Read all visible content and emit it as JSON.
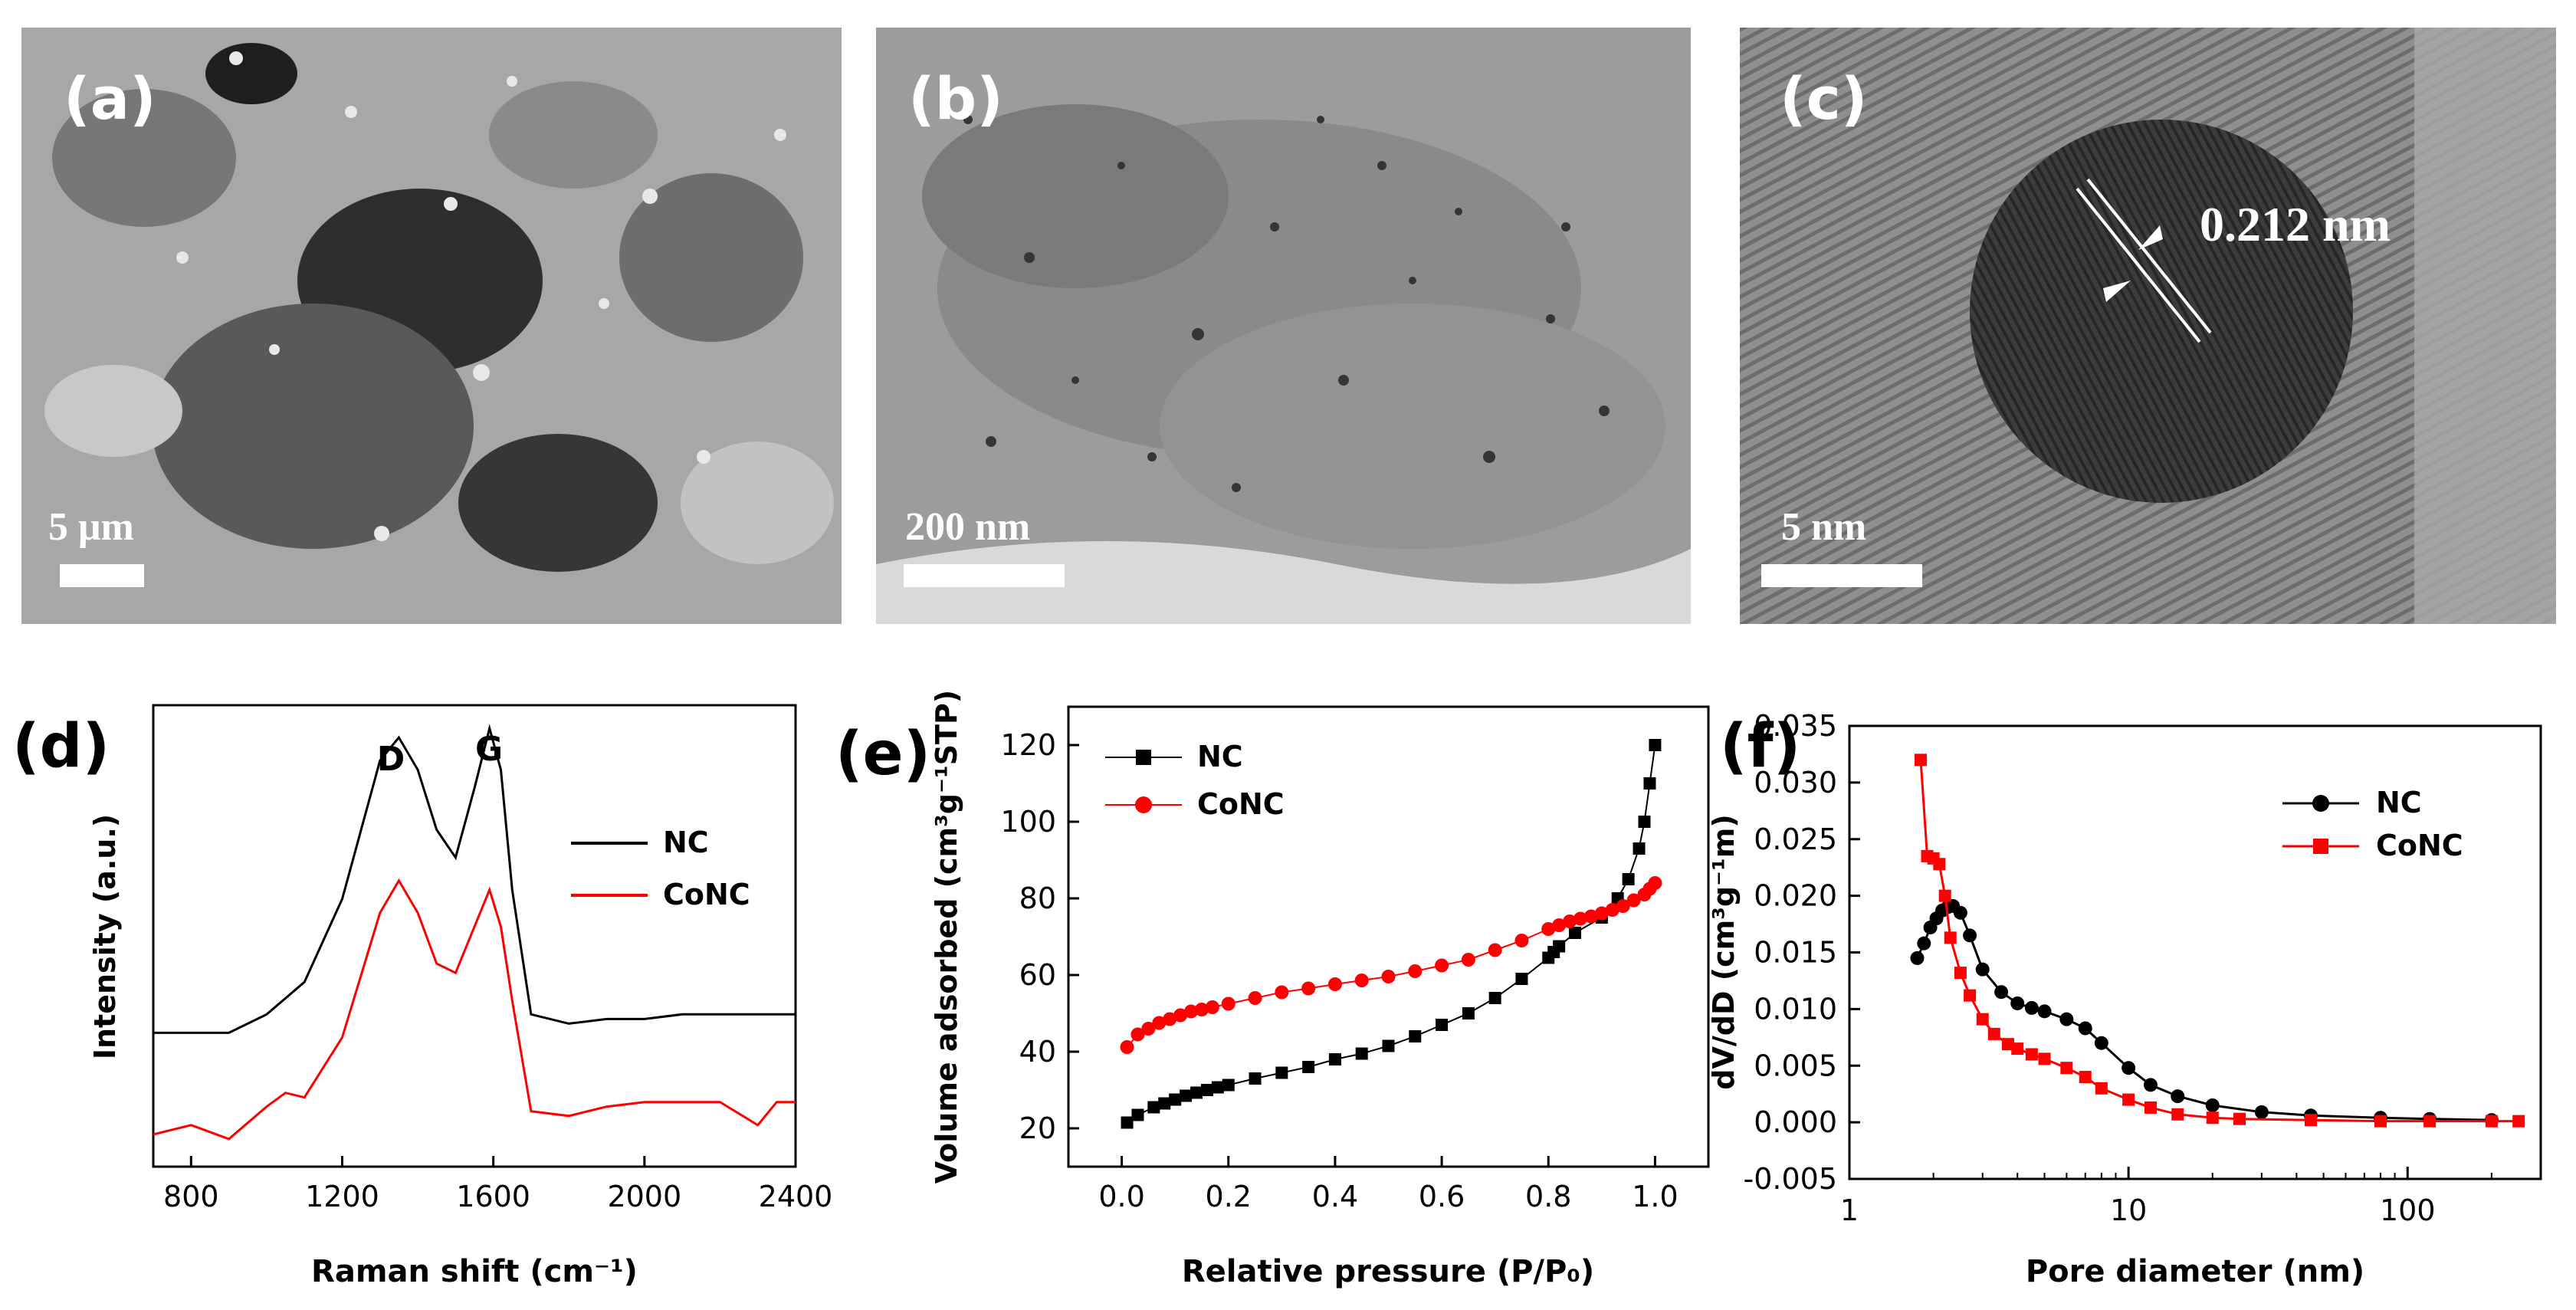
{
  "panels": {
    "a": {
      "label": "(a)",
      "scale": "5 μm"
    },
    "b": {
      "label": "(b)",
      "scale": "200 nm"
    },
    "c": {
      "label": "(c)",
      "scale": "5 nm",
      "lattice": "0.212 nm"
    }
  },
  "colors": {
    "nc": "#000000",
    "conc": "#ff0000"
  },
  "chart_data": [
    {
      "panel": "(d)",
      "type": "line",
      "xlabel": "Raman shift (cm⁻¹)",
      "ylabel": "Intensity (a.u.)",
      "xlim": [
        700,
        2400
      ],
      "xticks": [
        800,
        1200,
        1600,
        2000,
        2400
      ],
      "annotations": [
        "D",
        "G"
      ],
      "legend": "right",
      "series": [
        {
          "name": "NC",
          "x": [
            700,
            800,
            900,
            1000,
            1100,
            1200,
            1300,
            1350,
            1400,
            1450,
            1500,
            1550,
            1590,
            1620,
            1650,
            1700,
            1800,
            1900,
            2000,
            2100,
            2200,
            2300,
            2400
          ],
          "y": [
            0.29,
            0.29,
            0.29,
            0.33,
            0.4,
            0.58,
            0.88,
            0.93,
            0.86,
            0.73,
            0.67,
            0.82,
            0.95,
            0.86,
            0.6,
            0.33,
            0.31,
            0.32,
            0.32,
            0.33,
            0.33,
            0.33,
            0.33
          ]
        },
        {
          "name": "CoNC",
          "x": [
            700,
            800,
            900,
            1000,
            1050,
            1100,
            1200,
            1300,
            1350,
            1400,
            1450,
            1500,
            1550,
            1590,
            1620,
            1650,
            1700,
            1800,
            1900,
            2000,
            2100,
            2200,
            2300,
            2350,
            2400
          ],
          "y": [
            0.07,
            0.09,
            0.06,
            0.13,
            0.16,
            0.15,
            0.28,
            0.55,
            0.62,
            0.55,
            0.44,
            0.42,
            0.52,
            0.6,
            0.52,
            0.36,
            0.12,
            0.11,
            0.13,
            0.14,
            0.14,
            0.14,
            0.09,
            0.14,
            0.14
          ]
        }
      ]
    },
    {
      "panel": "(e)",
      "type": "scatter",
      "xlabel": "Relative pressure (P/P₀)",
      "ylabel": "Volume adsorbed (cm³g⁻¹STP)",
      "xlim": [
        -0.1,
        1.1
      ],
      "ylim": [
        10,
        130
      ],
      "xticks": [
        0.0,
        0.2,
        0.4,
        0.6,
        0.8,
        1.0
      ],
      "yticks": [
        20,
        40,
        60,
        80,
        100,
        120
      ],
      "legend": "top-left",
      "series": [
        {
          "name": "NC",
          "marker": "square",
          "x": [
            0.01,
            0.03,
            0.06,
            0.08,
            0.1,
            0.12,
            0.14,
            0.16,
            0.18,
            0.2,
            0.25,
            0.3,
            0.35,
            0.4,
            0.45,
            0.5,
            0.55,
            0.6,
            0.65,
            0.7,
            0.75,
            0.8,
            0.81,
            0.82,
            0.85,
            0.9,
            0.93,
            0.95,
            0.97,
            0.98,
            0.99,
            1.0
          ],
          "y": [
            21.5,
            23.5,
            25.5,
            26.5,
            27.5,
            28.5,
            29.3,
            30,
            30.7,
            31.3,
            33,
            34.5,
            36,
            38,
            39.5,
            41.5,
            44,
            47,
            50,
            54,
            59,
            64.5,
            66,
            67.5,
            71,
            75,
            80,
            85,
            93,
            100,
            110,
            120
          ]
        },
        {
          "name": "CoNC",
          "marker": "circle",
          "x": [
            0.01,
            0.03,
            0.05,
            0.07,
            0.09,
            0.11,
            0.13,
            0.15,
            0.17,
            0.2,
            0.25,
            0.3,
            0.35,
            0.4,
            0.45,
            0.5,
            0.55,
            0.6,
            0.65,
            0.7,
            0.75,
            0.8,
            0.82,
            0.84,
            0.86,
            0.88,
            0.9,
            0.92,
            0.94,
            0.96,
            0.98,
            0.99,
            1.0
          ],
          "y": [
            41.2,
            44.5,
            46,
            47.5,
            48.5,
            49.5,
            50.5,
            51,
            51.6,
            52.5,
            54,
            55.5,
            56.5,
            57.6,
            58.6,
            59.6,
            61,
            62.5,
            64,
            66.5,
            69,
            72,
            73,
            74,
            74.7,
            75.3,
            76.1,
            77,
            78,
            79.5,
            81,
            82.5,
            84
          ]
        }
      ]
    },
    {
      "panel": "(f)",
      "type": "line",
      "xscale": "log",
      "xlabel": "Pore diameter (nm)",
      "ylabel": "dV/dD (cm³g⁻¹m)",
      "xlim": [
        1,
        300
      ],
      "ylim": [
        -0.005,
        0.035
      ],
      "xticks": [
        1,
        10,
        100
      ],
      "yticks": [
        -0.005,
        0.0,
        0.005,
        0.01,
        0.015,
        0.02,
        0.025,
        0.03,
        0.035
      ],
      "legend": "top-right",
      "series": [
        {
          "name": "NC",
          "marker": "circle",
          "x": [
            1.75,
            1.85,
            1.95,
            2.05,
            2.15,
            2.25,
            2.35,
            2.5,
            2.7,
            3,
            3.5,
            4,
            4.5,
            5,
            6,
            7,
            8,
            10,
            12,
            15,
            20,
            30,
            45,
            80,
            120,
            200
          ],
          "y": [
            0.0145,
            0.0158,
            0.0172,
            0.018,
            0.0187,
            0.019,
            0.0191,
            0.0185,
            0.0165,
            0.0135,
            0.0115,
            0.0105,
            0.0101,
            0.0098,
            0.0091,
            0.0083,
            0.007,
            0.0048,
            0.0033,
            0.0023,
            0.0015,
            0.0009,
            0.0006,
            0.0004,
            0.0003,
            0.0002
          ]
        },
        {
          "name": "CoNC",
          "marker": "square",
          "x": [
            1.8,
            1.9,
            2.0,
            2.1,
            2.2,
            2.3,
            2.5,
            2.7,
            3,
            3.3,
            3.7,
            4,
            4.5,
            5,
            6,
            7,
            8,
            10,
            12,
            15,
            20,
            25,
            45,
            80,
            120,
            200,
            250
          ],
          "y": [
            0.032,
            0.0235,
            0.0233,
            0.0228,
            0.02,
            0.0163,
            0.0132,
            0.0112,
            0.0091,
            0.0078,
            0.0069,
            0.0065,
            0.006,
            0.0056,
            0.0048,
            0.004,
            0.003,
            0.002,
            0.0013,
            0.0007,
            0.0004,
            0.0003,
            0.0002,
            0.0001,
            0.0001,
            0.0001,
            0.0001
          ]
        }
      ]
    }
  ]
}
